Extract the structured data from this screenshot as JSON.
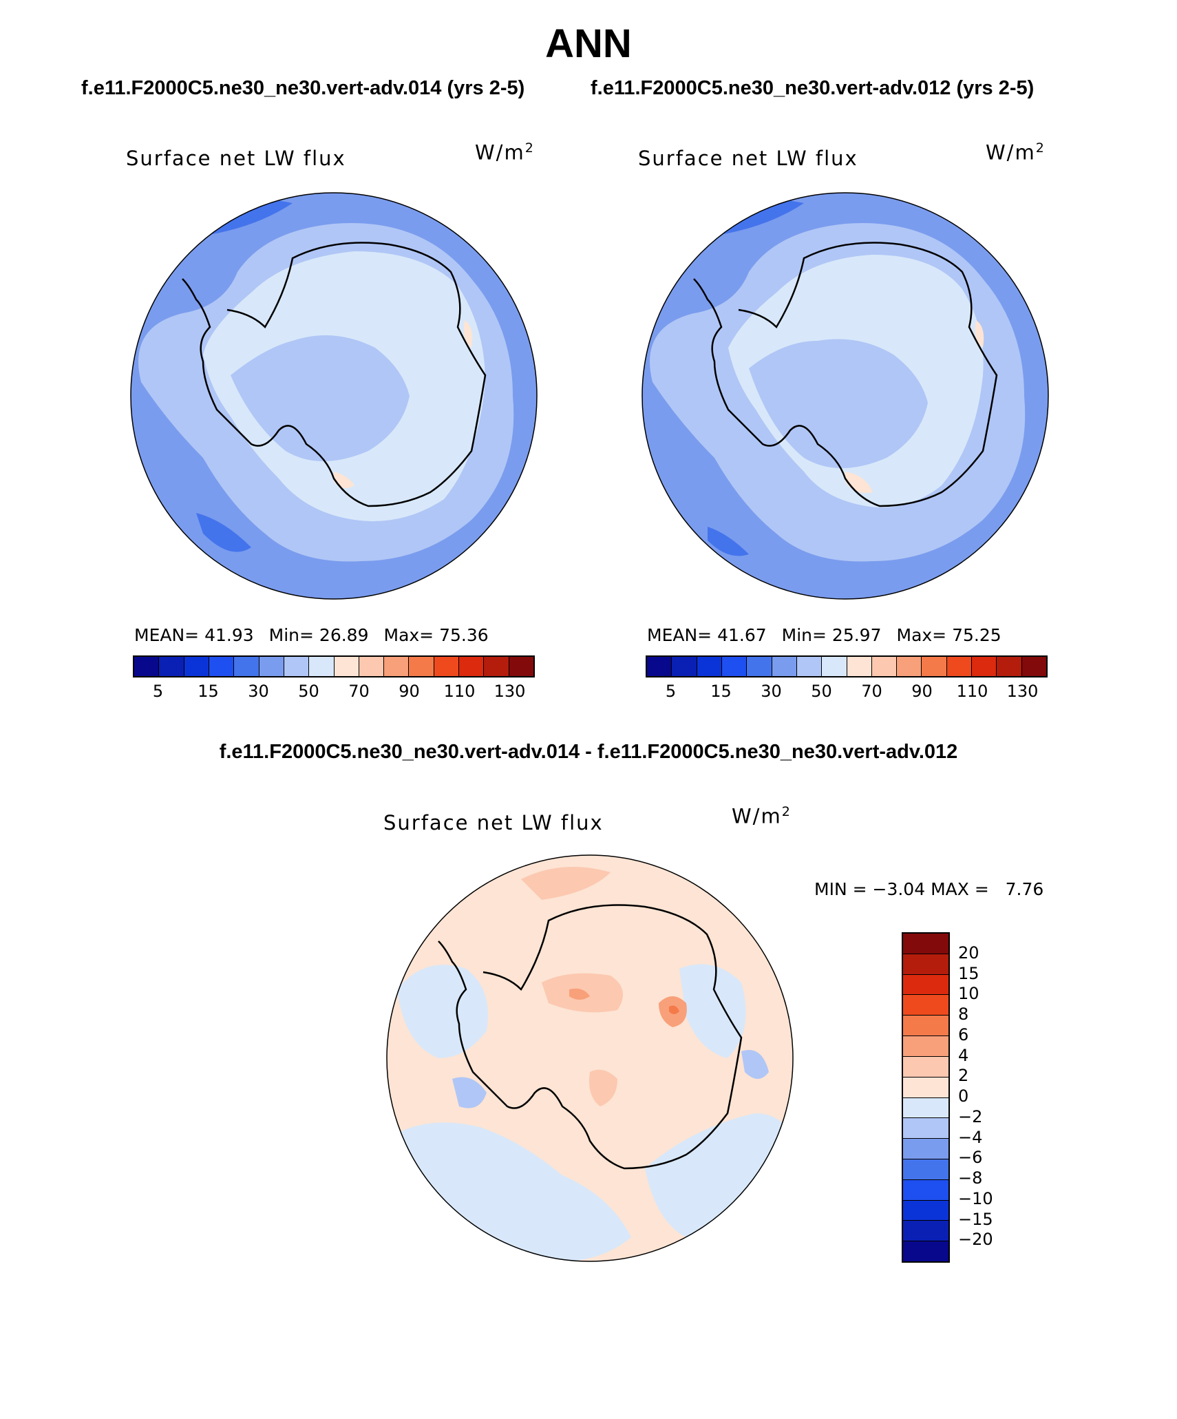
{
  "title": "ANN",
  "case_titles": {
    "left": "f.e11.F2000C5.ne30_ne30.vert-adv.014 (yrs 2-5)",
    "right": "f.e11.F2000C5.ne30_ne30.vert-adv.012 (yrs 2-5)"
  },
  "diff_title": "f.e11.F2000C5.ne30_ne30.vert-adv.014 - f.e11.F2000C5.ne30_ne30.vert-adv.012",
  "panels": [
    {
      "id": "left",
      "variable_label": "Surface net LW flux",
      "units_base": "W/m",
      "units_exp": "2",
      "stats": {
        "mean_label": "MEAN=",
        "mean": "41.93",
        "min_label": "Min=",
        "min": "26.89",
        "max_label": "Max=",
        "max": "75.36"
      }
    },
    {
      "id": "right",
      "variable_label": "Surface net LW flux",
      "units_base": "W/m",
      "units_exp": "2",
      "stats": {
        "mean_label": "MEAN=",
        "mean": "41.67",
        "min_label": "Min=",
        "min": "25.97",
        "max_label": "Max=",
        "max": "75.25"
      }
    }
  ],
  "diff_panel": {
    "variable_label": "Surface net LW flux",
    "units_base": "W/m",
    "units_exp": "2",
    "min_label": "MIN =",
    "min": "−3.04",
    "max_label": "MAX =",
    "max": "7.76"
  },
  "field_colorbar": {
    "colors": [
      "#08088c",
      "#0a20b4",
      "#0b34d8",
      "#1e4ff0",
      "#4474ec",
      "#7a9cee",
      "#b0c6f6",
      "#d8e8fa",
      "#fde4d4",
      "#fcc8b0",
      "#f8a07a",
      "#f47a4a",
      "#ee4a1e",
      "#dc2a0e",
      "#b41c0c",
      "#820a0a"
    ],
    "ticks": [
      "5",
      "15",
      "30",
      "50",
      "70",
      "90",
      "110",
      "130"
    ]
  },
  "diff_colorbar": {
    "colors": [
      "#820a0a",
      "#b41c0c",
      "#dc2a0e",
      "#ee4a1e",
      "#f47a4a",
      "#f8a07a",
      "#fcc8b0",
      "#fde4d4",
      "#d8e8fa",
      "#b0c6f6",
      "#7a9cee",
      "#4474ec",
      "#1e4ff0",
      "#0b34d8",
      "#0a20b4",
      "#08088c"
    ],
    "ticks": [
      "20",
      "15",
      "10",
      "8",
      "6",
      "4",
      "2",
      "0",
      "−2",
      "−4",
      "−6",
      "−8",
      "−10",
      "−15",
      "−20"
    ]
  }
}
